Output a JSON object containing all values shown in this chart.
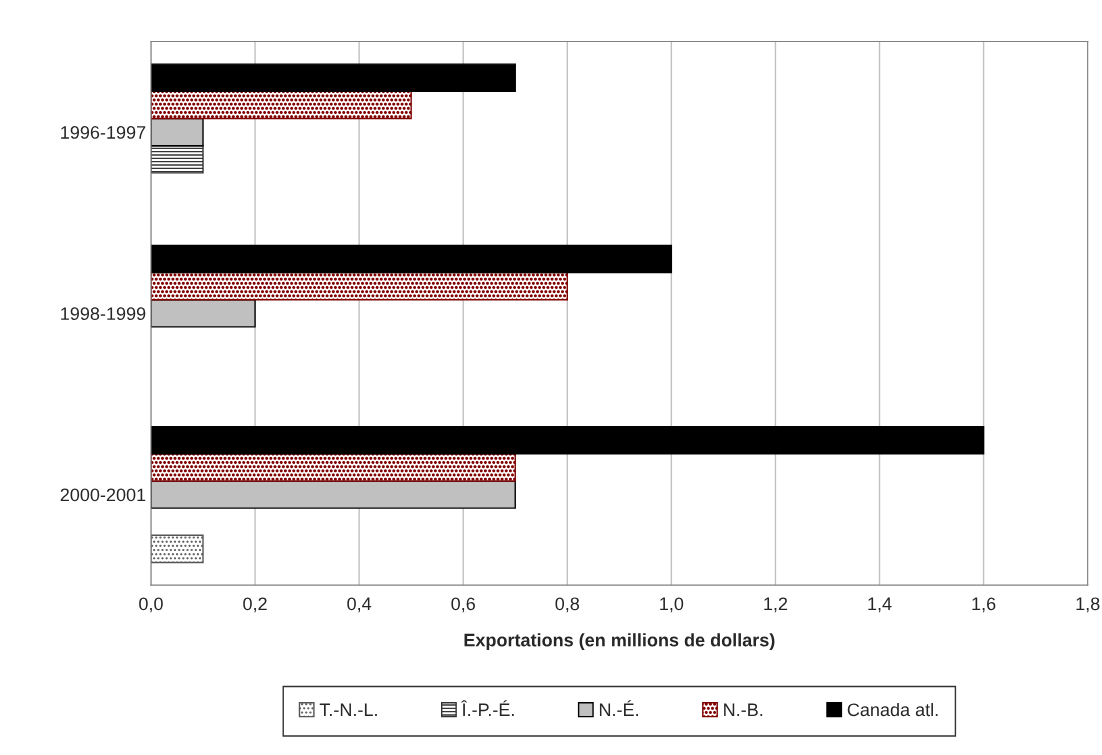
{
  "chart_data": {
    "type": "bar",
    "orientation": "horizontal",
    "xlabel": "Exportations (en millions de dollars)",
    "categories": [
      "1996-1997",
      "1998-1999",
      "2000-2001"
    ],
    "series": [
      {
        "name": "T.-N.-L.",
        "color": "#555555",
        "values": [
          null,
          null,
          0.1
        ]
      },
      {
        "name": "Î.-P.-É.",
        "color": "#333333",
        "values": [
          0.1,
          null,
          null
        ]
      },
      {
        "name": "N.-É.",
        "color": "#c0c0c0",
        "values": [
          0.1,
          0.2,
          0.7
        ]
      },
      {
        "name": "N.-B.",
        "color": "#800000",
        "values": [
          0.5,
          0.8,
          0.7
        ]
      },
      {
        "name": "Canada atl.",
        "color": "#000000",
        "values": [
          0.7,
          1.0,
          1.6
        ]
      }
    ],
    "xlim": [
      0,
      1.8
    ],
    "xticks": [
      {
        "value": 0,
        "label": "0,0"
      },
      {
        "value": 0.2,
        "label": "0,2"
      },
      {
        "value": 0.4,
        "label": "0,4"
      },
      {
        "value": 0.6,
        "label": "0,6"
      },
      {
        "value": 0.8,
        "label": "0,8"
      },
      {
        "value": 1.0,
        "label": "1,0"
      },
      {
        "value": 1.2,
        "label": "1,2"
      },
      {
        "value": 1.4,
        "label": "1,4"
      },
      {
        "value": 1.6,
        "label": "1,6"
      },
      {
        "value": 1.8,
        "label": "1,8"
      }
    ],
    "grid": "x",
    "legend": "bottom"
  }
}
